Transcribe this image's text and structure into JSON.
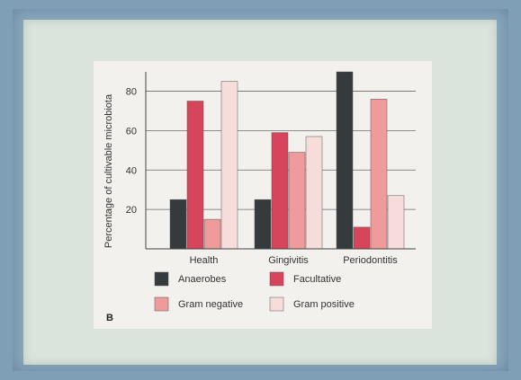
{
  "chart_data": {
    "type": "bar",
    "panel_label": "B",
    "title": "",
    "xlabel": "",
    "ylabel": "Percentage of cultivable microbiota",
    "ylim": [
      0,
      88
    ],
    "yticks": [
      "20",
      "40",
      "60",
      "80"
    ],
    "ytick_values": [
      20,
      40,
      60,
      80
    ],
    "grid": true,
    "legend_position": "bottom",
    "categories": [
      "Health",
      "Gingivitis",
      "Periodontitis"
    ],
    "series": [
      {
        "name": "Anaerobes",
        "values": [
          25,
          25,
          90
        ],
        "color": "#353a3c"
      },
      {
        "name": "Facultative",
        "values": [
          75,
          59,
          11
        ],
        "color": "#d6455a"
      },
      {
        "name": "Gram negative",
        "values": [
          15,
          49,
          76
        ],
        "color": "#ef9b9c"
      },
      {
        "name": "Gram positive",
        "values": [
          85,
          57,
          27
        ],
        "color": "#f6dddb"
      }
    ]
  }
}
